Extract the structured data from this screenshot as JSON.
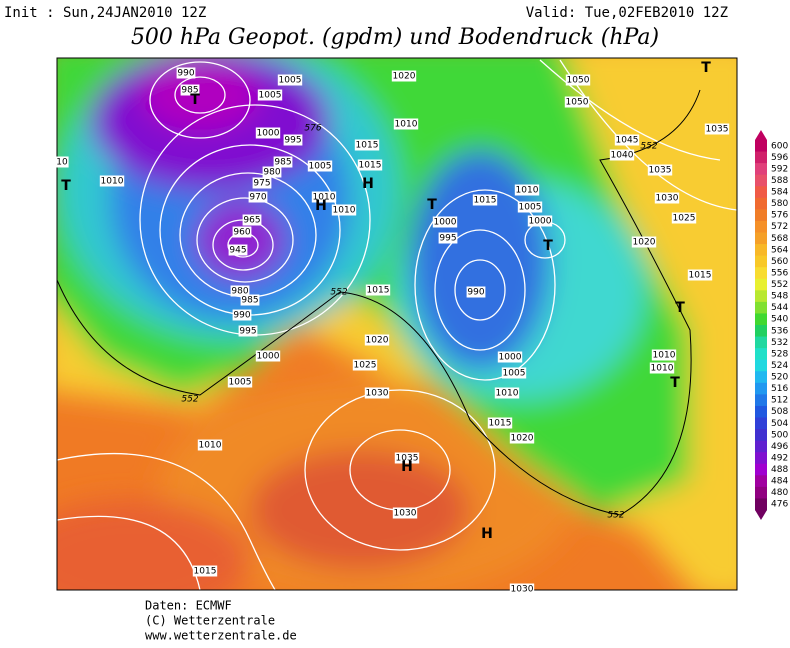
{
  "header": {
    "init": "Init : Sun,24JAN2010 12Z",
    "valid": "Valid: Tue,02FEB2010 12Z",
    "title": "500 hPa Geopot. (gpdm) und Bodendruck (hPa)"
  },
  "colorbar": {
    "labels": [
      "600",
      "596",
      "592",
      "588",
      "584",
      "580",
      "576",
      "572",
      "568",
      "564",
      "560",
      "556",
      "552",
      "548",
      "544",
      "540",
      "536",
      "532",
      "528",
      "524",
      "520",
      "516",
      "512",
      "508",
      "504",
      "500",
      "496",
      "492",
      "488",
      "484",
      "480",
      "476"
    ],
    "colors": [
      "#c00060",
      "#d0206a",
      "#e0407a",
      "#e8506a",
      "#f05a46",
      "#f06a30",
      "#f07d28",
      "#f59028",
      "#f5a028",
      "#f8b828",
      "#f8c828",
      "#f8dc30",
      "#e8f030",
      "#b8e830",
      "#80e030",
      "#40d830",
      "#20d060",
      "#20d8a0",
      "#20e0c8",
      "#20d8e0",
      "#20b8f0",
      "#2098f0",
      "#2078e8",
      "#2058e0",
      "#3040d8",
      "#4030d0",
      "#6020d0",
      "#8010d0",
      "#a000d0",
      "#a000a0",
      "#900080",
      "#700060"
    ]
  },
  "isobars": {
    "labels": [
      "990",
      "985",
      "1005",
      "1005",
      "1000",
      "995",
      "985",
      "980",
      "975",
      "970",
      "965",
      "960",
      "945",
      "980",
      "985",
      "990",
      "995",
      "1000",
      "1005",
      "1010",
      "1010",
      "1010",
      "1005",
      "1015",
      "1015",
      "1020",
      "1010",
      "1015",
      "1020",
      "1025",
      "1030",
      "1035",
      "1030",
      "1015",
      "1010",
      "1015",
      "1010",
      "1005",
      "1000",
      "1000",
      "995",
      "990",
      "1000",
      "1005",
      "1010",
      "1015",
      "1020",
      "1050",
      "1050",
      "1045",
      "1040",
      "1035",
      "1030",
      "1025",
      "1020",
      "1015",
      "1010",
      "1010",
      "1035",
      "1030",
      "10"
    ]
  },
  "geopotential": {
    "labels": [
      "552",
      "552",
      "552",
      "552",
      "576"
    ]
  },
  "centers": [
    "T",
    "T",
    "H",
    "H",
    "T",
    "T",
    "T",
    "T",
    "T",
    "H",
    "H"
  ],
  "footer": [
    "Daten: ECMWF",
    "(C) Wetterzentrale",
    "www.wetterzentrale.de"
  ]
}
